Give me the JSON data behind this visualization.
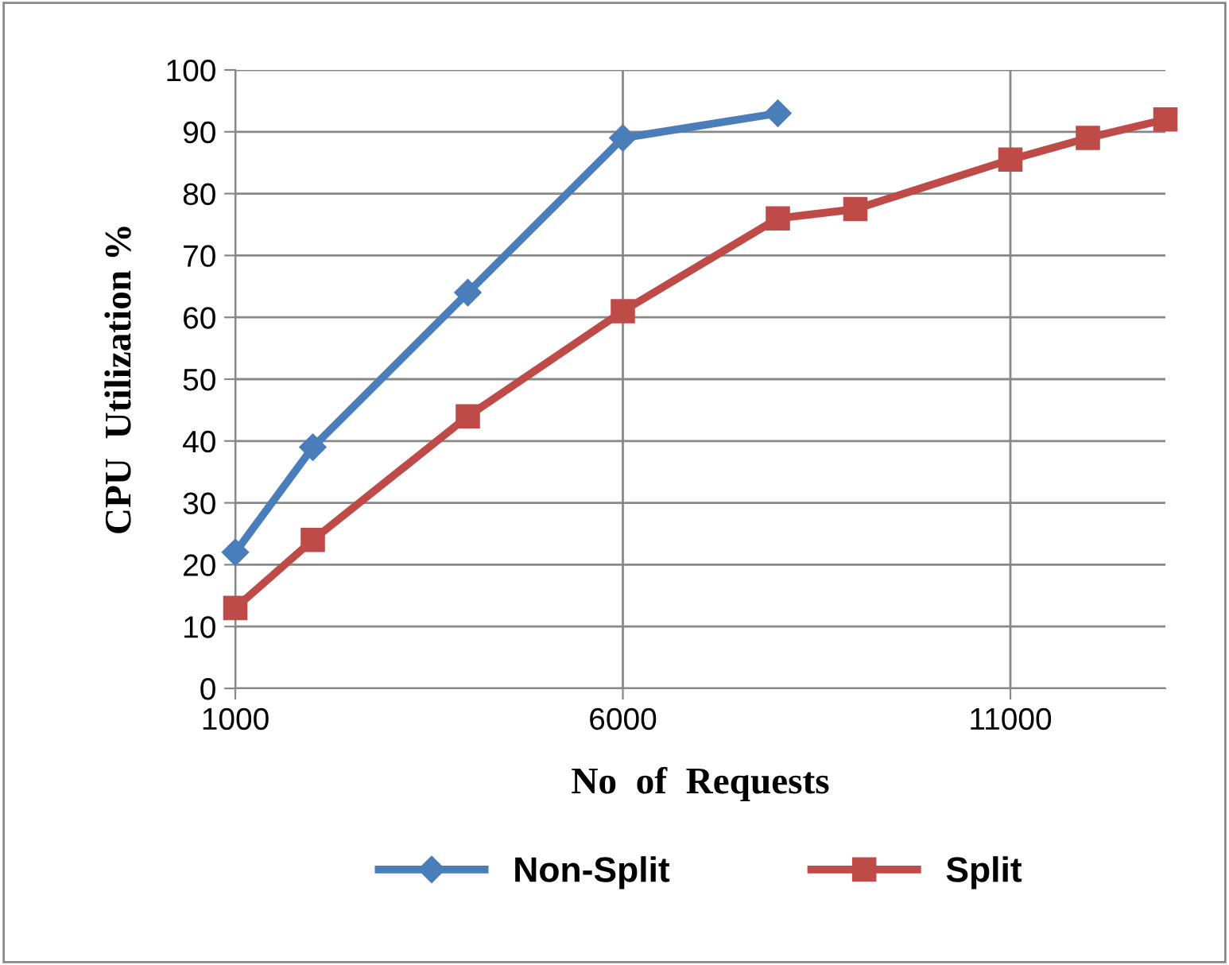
{
  "chart_data": {
    "type": "line",
    "xlabel": "No  of  Requests",
    "ylabel": "CPU  Utilization %",
    "xlim": [
      1000,
      13000
    ],
    "xticks": [
      1000,
      6000,
      11000
    ],
    "ylim": [
      0,
      100
    ],
    "yticks": [
      0,
      10,
      20,
      30,
      40,
      50,
      60,
      70,
      80,
      90,
      100
    ],
    "grid": true,
    "legend": "bottom",
    "series": [
      {
        "name": "Non-Split",
        "color": "#4a7ebb",
        "marker": "diamond",
        "x": [
          1000,
          2000,
          4000,
          6000,
          8000
        ],
        "values": [
          22,
          39,
          64,
          89,
          93
        ]
      },
      {
        "name": "Split",
        "color": "#be4b48",
        "marker": "square",
        "x": [
          1000,
          2000,
          4000,
          6000,
          8000,
          9000,
          11000,
          12000,
          13000
        ],
        "values": [
          13,
          24,
          44,
          61,
          76,
          77.5,
          85.5,
          89,
          92
        ]
      }
    ]
  }
}
